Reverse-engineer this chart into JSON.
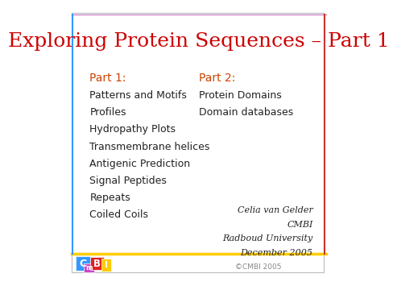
{
  "title": "Exploring Protein Sequences – Part 1",
  "title_color": "#cc0000",
  "title_fontsize": 18,
  "bg_color": "#ffffff",
  "top_line_color": "#cc88cc",
  "bottom_line_color": "#ffcc00",
  "left_line_color": "#3399ff",
  "right_line_color": "#cc3333",
  "part1_header": "Part 1:",
  "part1_header_color": "#cc4400",
  "part1_items": [
    "Patterns and Motifs",
    "Profiles",
    "Hydropathy Plots",
    "Transmembrane helices",
    "Antigenic Prediction",
    "Signal Peptides",
    "Repeats",
    "Coiled Coils"
  ],
  "part2_header": "Part 2:",
  "part2_header_color": "#cc4400",
  "part2_items": [
    "Protein Domains",
    "Domain databases"
  ],
  "credit_lines": [
    "Celia van Gelder",
    "CMBI",
    "Radboud University",
    "December 2005"
  ],
  "copyright_text": "©CMBI 2005",
  "copyright_color": "#888888",
  "text_color": "#222222",
  "item_fontsize": 9,
  "header_fontsize": 10,
  "credit_fontsize": 8,
  "logo_c_color": "#3399ff",
  "logo_m_color": "#cc44cc",
  "logo_b_color": "#dd2222",
  "logo_i_color": "#ffcc00"
}
